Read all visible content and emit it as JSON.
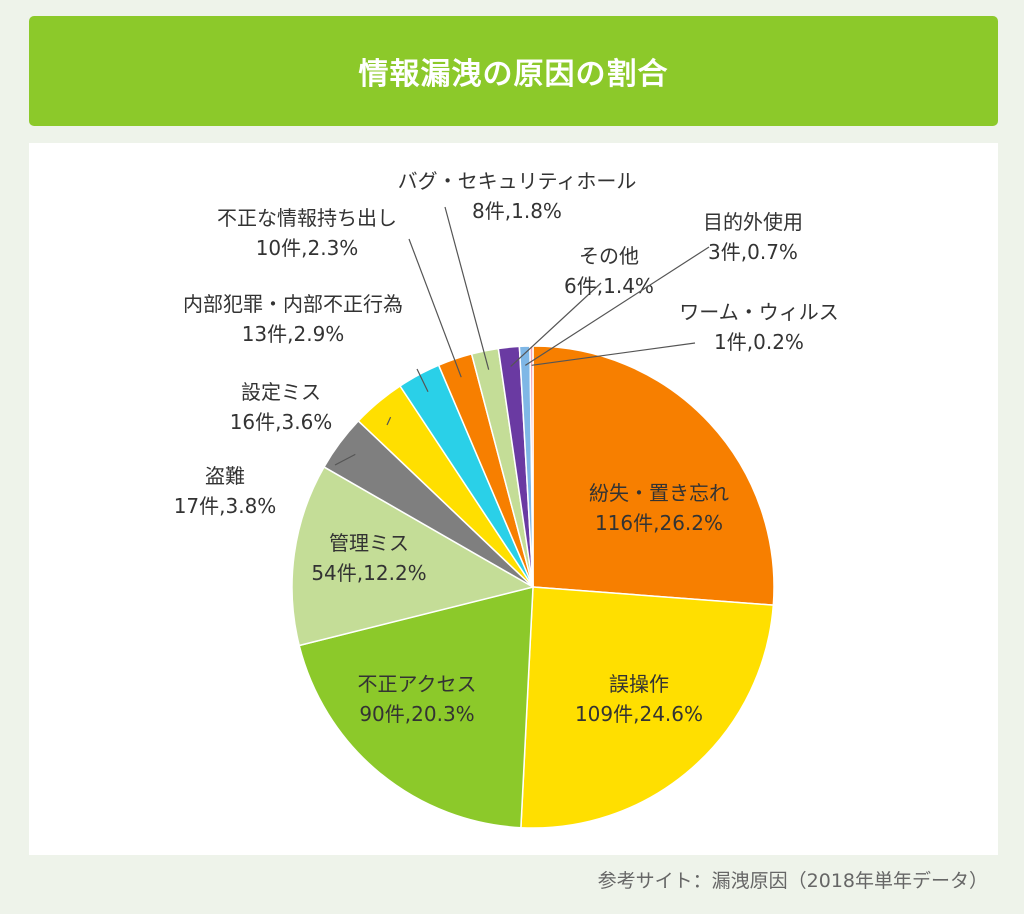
{
  "title": "情報漏洩の原因の割合",
  "source": "参考サイト：漏洩原因（2018年単年データ）",
  "chart_data": {
    "type": "pie",
    "title": "情報漏洩の原因の割合",
    "slices": [
      {
        "label": "紛失・置き忘れ",
        "count": "116件",
        "value": 26.2,
        "pct": "26.2%",
        "color": "#f77f00"
      },
      {
        "label": "誤操作",
        "count": "109件",
        "value": 24.6,
        "pct": "24.6%",
        "color": "#ffdf00"
      },
      {
        "label": "不正アクセス",
        "count": "90件",
        "value": 20.3,
        "pct": "20.3%",
        "color": "#8cc92a"
      },
      {
        "label": "管理ミス",
        "count": "54件",
        "value": 12.2,
        "pct": "12.2%",
        "color": "#c4dd97"
      },
      {
        "label": "盗難",
        "count": "17件",
        "value": 3.8,
        "pct": "3.8%",
        "color": "#7f7f7f"
      },
      {
        "label": "設定ミス",
        "count": "16件",
        "value": 3.6,
        "pct": "3.6%",
        "color": "#ffdf00"
      },
      {
        "label": "内部犯罪・内部不正行為",
        "count": "13件",
        "value": 2.9,
        "pct": "2.9%",
        "color": "#2ad0e8"
      },
      {
        "label": "不正な情報持ち出し",
        "count": "10件",
        "value": 2.3,
        "pct": "2.3%",
        "color": "#f77f00"
      },
      {
        "label": "バグ・セキュリティホール",
        "count": "8件",
        "value": 1.8,
        "pct": "1.8%",
        "color": "#c4dd97"
      },
      {
        "label": "その他",
        "count": "6件",
        "value": 1.4,
        "pct": "1.4%",
        "color": "#6a3aa2"
      },
      {
        "label": "目的外使用",
        "count": "3件",
        "value": 0.7,
        "pct": "0.7%",
        "color": "#7fb7e6"
      },
      {
        "label": "ワーム・ウィルス",
        "count": "1件",
        "value": 0.2,
        "pct": "0.2%",
        "color": "#f4a3b4"
      }
    ]
  }
}
